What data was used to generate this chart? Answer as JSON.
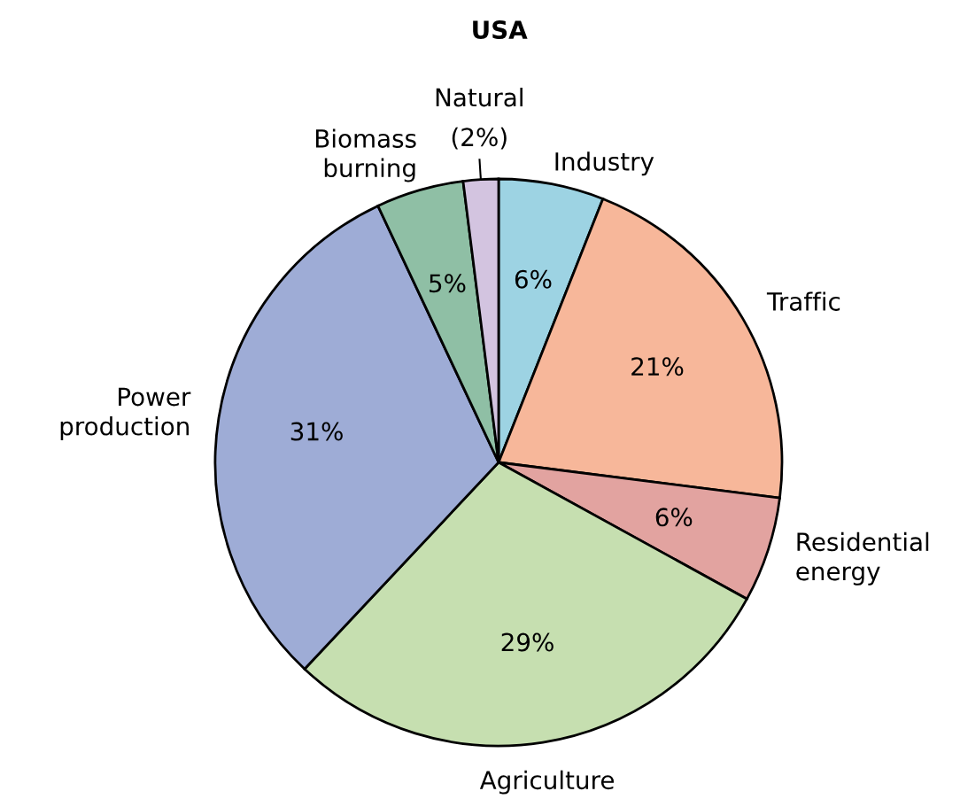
{
  "chart_data": {
    "type": "pie",
    "title": "USA",
    "categories": [
      "Industry",
      "Traffic",
      "Residential\nenergy",
      "Agriculture",
      "Power\nproduction",
      "Biomass\nburning",
      "Natural"
    ],
    "values": [
      6,
      21,
      6,
      29,
      31,
      5,
      2
    ],
    "colors": [
      "#9dd3e3",
      "#f7b79a",
      "#e2a3a0",
      "#c6dfb0",
      "#9eacd6",
      "#8fbfa5",
      "#d3c4e0"
    ],
    "value_labels": [
      "6%",
      "21%",
      "6%",
      "29%",
      "31%",
      "5%",
      "(2%)"
    ]
  }
}
